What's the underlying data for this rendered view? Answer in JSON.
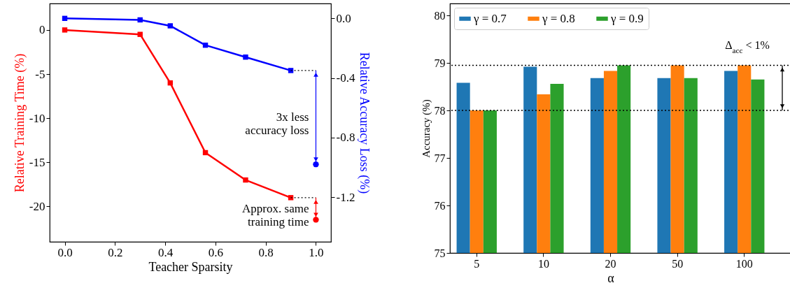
{
  "chart_data": [
    {
      "type": "line",
      "xlabel": "Teacher Sparsity",
      "ylabel": "Relative Training Time (%)",
      "y2label": "Relative Accuracy Loss (%)",
      "xlim": [
        -0.06,
        1.06
      ],
      "xticks": [
        {
          "value": 0,
          "label": "0.0"
        },
        {
          "value": 0.2,
          "label": "0.2"
        },
        {
          "value": 0.4,
          "label": "0.4"
        },
        {
          "value": 0.6,
          "label": "0.6"
        },
        {
          "value": 0.8,
          "label": "0.8"
        },
        {
          "value": 1,
          "label": "1.0"
        }
      ],
      "ylim": [
        -24,
        3
      ],
      "yticks": [
        -20,
        -15,
        -10,
        -5,
        0
      ],
      "y2lim": [
        -1.5,
        0.1
      ],
      "y2ticks": [
        {
          "value": -1.2,
          "label": "-1.2"
        },
        {
          "value": -0.8,
          "label": "-0.8"
        },
        {
          "value": -0.4,
          "label": "-0.4"
        },
        {
          "value": 0,
          "label": "0.0"
        }
      ],
      "marker": "square",
      "grid": false,
      "series": [
        {
          "color": "#ff0000",
          "x": [
            0,
            0.3,
            0.42,
            0.56,
            0.72,
            0.9
          ],
          "values": [
            0,
            -0.5,
            -6,
            -13.9,
            -17,
            -19
          ]
        },
        {
          "color": "#0000ff",
          "axis": "y2",
          "x": [
            0,
            0.3,
            0.42,
            0.56,
            0.72,
            0.9
          ],
          "values": [
            0,
            -0.01,
            -0.05,
            -0.18,
            -0.26,
            -0.35
          ]
        },
        {
          "type": "scatter",
          "marker": "circle",
          "color": "#0000ff",
          "axis": "y2",
          "x": [
            1
          ],
          "values": [
            -0.98
          ]
        },
        {
          "type": "scatter",
          "marker": "circle",
          "color": "#ff0000",
          "x": [
            1
          ],
          "values": [
            -21.5
          ]
        }
      ],
      "annotations": [
        "3x less\naccuracy loss",
        "Approx. same\ntraining time"
      ]
    },
    {
      "type": "bar",
      "xlabel": "α",
      "ylabel": "Accuracy (%)",
      "categories": [
        "5",
        "10",
        "20",
        "50",
        "100"
      ],
      "ylim": [
        75,
        80.25
      ],
      "yticks": [
        75,
        76,
        77,
        78,
        79,
        80
      ],
      "legend": "top left",
      "grid": false,
      "series": [
        {
          "name": "γ = 0.7",
          "color": "#1f77b4",
          "values": [
            78.58,
            78.92,
            78.68,
            78.68,
            78.83
          ]
        },
        {
          "name": "γ = 0.8",
          "color": "#ff7f0e",
          "values": [
            78.0,
            78.34,
            78.83,
            78.95,
            78.95
          ]
        },
        {
          "name": "γ = 0.9",
          "color": "#2ca02c",
          "values": [
            78.0,
            78.56,
            78.95,
            78.68,
            78.65
          ]
        }
      ],
      "ref_lines": [
        {
          "axis": "y",
          "value": 78.0,
          "color": "#000000",
          "line_style": "dotted"
        },
        {
          "axis": "y",
          "value": 78.95,
          "color": "#000000",
          "line_style": "dotted"
        }
      ],
      "annotations": [
        "Δ$_{acc}$ < 1%"
      ]
    }
  ]
}
